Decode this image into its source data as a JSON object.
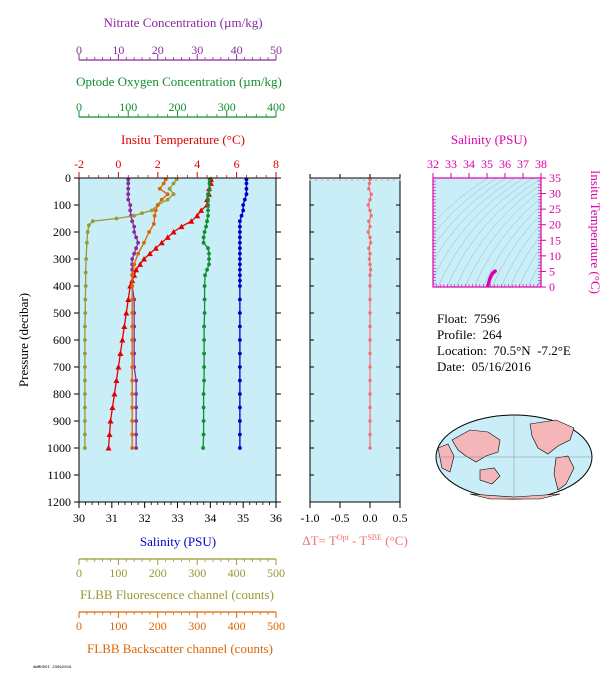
{
  "colors": {
    "nitrate": "#8b2b9b",
    "oxygen": "#0f8f2f",
    "temperature": "#e00000",
    "salinity": "#0000cc",
    "fluorescence": "#999933",
    "backscatter": "#dd6600",
    "delta_t": "#f07070",
    "plot_bg": "#c9eef8",
    "ts_pink": "#dd00aa"
  },
  "info": {
    "float_label": "Float:  7596",
    "profile_label": "Profile:  264",
    "location_label": "Location:  70.5°N  -7.2°E",
    "date_label": "Date:  05/16/2016"
  },
  "footer_stamp": "AWMHOOI 23062016",
  "map": {
    "type": "world-globe-inset"
  },
  "chart_data": [
    {
      "type": "line",
      "panel": "profile",
      "ylabel": "Pressure (decibar)",
      "ylim": [
        1200,
        0
      ],
      "yticks": [
        0,
        100,
        200,
        300,
        400,
        500,
        600,
        700,
        800,
        900,
        1000,
        1100,
        1200
      ],
      "axes": {
        "nitrate": {
          "label": "Nitrate Concentration (µm/kg)",
          "lim": [
            0,
            50
          ],
          "ticks": [
            0,
            10,
            20,
            30,
            40,
            50
          ]
        },
        "oxygen": {
          "label": "Optode Oxygen Concentration (µm/kg)",
          "lim": [
            0,
            400
          ],
          "ticks": [
            0,
            100,
            200,
            300,
            400
          ]
        },
        "temperature": {
          "label": "Insitu Temperature (°C)",
          "lim": [
            -2,
            8
          ],
          "ticks": [
            -2,
            0,
            2,
            4,
            6,
            8
          ]
        },
        "salinity": {
          "label": "Salinity (PSU)",
          "lim": [
            30,
            36
          ],
          "ticks": [
            30,
            31,
            32,
            33,
            34,
            35,
            36
          ]
        },
        "fluorescence": {
          "label": "FLBB Fluorescence channel (counts)",
          "lim": [
            0,
            500
          ],
          "ticks": [
            0,
            100,
            200,
            300,
            400,
            500
          ]
        },
        "backscatter": {
          "label": "FLBB Backscatter channel (counts)",
          "lim": [
            0,
            500
          ],
          "ticks": [
            0,
            100,
            200,
            300,
            400,
            500
          ]
        }
      },
      "series": [
        {
          "name": "Insitu Temperature",
          "axis": "temperature",
          "points": [
            [
              4.7,
              5
            ],
            [
              4.7,
              20
            ],
            [
              4.6,
              40
            ],
            [
              4.6,
              60
            ],
            [
              4.5,
              80
            ],
            [
              4.5,
              100
            ],
            [
              4.2,
              120
            ],
            [
              4.0,
              140
            ],
            [
              3.7,
              160
            ],
            [
              3.2,
              180
            ],
            [
              2.8,
              200
            ],
            [
              2.5,
              220
            ],
            [
              2.2,
              240
            ],
            [
              1.9,
              260
            ],
            [
              1.6,
              280
            ],
            [
              1.3,
              300
            ],
            [
              1.1,
              320
            ],
            [
              0.9,
              340
            ],
            [
              0.8,
              360
            ],
            [
              0.7,
              380
            ],
            [
              0.6,
              400
            ],
            [
              0.5,
              450
            ],
            [
              0.4,
              500
            ],
            [
              0.3,
              550
            ],
            [
              0.2,
              600
            ],
            [
              0.1,
              650
            ],
            [
              0.0,
              700
            ],
            [
              -0.1,
              750
            ],
            [
              -0.2,
              800
            ],
            [
              -0.3,
              850
            ],
            [
              -0.4,
              900
            ],
            [
              -0.45,
              950
            ],
            [
              -0.5,
              1000
            ]
          ]
        },
        {
          "name": "Salinity",
          "axis": "salinity",
          "points": [
            [
              35.1,
              5
            ],
            [
              35.1,
              20
            ],
            [
              35.1,
              40
            ],
            [
              35.1,
              60
            ],
            [
              35.05,
              80
            ],
            [
              35.0,
              100
            ],
            [
              35.0,
              120
            ],
            [
              34.95,
              140
            ],
            [
              34.9,
              160
            ],
            [
              34.9,
              180
            ],
            [
              34.9,
              200
            ],
            [
              34.9,
              220
            ],
            [
              34.9,
              240
            ],
            [
              34.9,
              260
            ],
            [
              34.9,
              280
            ],
            [
              34.9,
              300
            ],
            [
              34.9,
              320
            ],
            [
              34.9,
              340
            ],
            [
              34.9,
              360
            ],
            [
              34.9,
              380
            ],
            [
              34.9,
              400
            ],
            [
              34.9,
              450
            ],
            [
              34.9,
              500
            ],
            [
              34.9,
              550
            ],
            [
              34.9,
              600
            ],
            [
              34.9,
              650
            ],
            [
              34.9,
              700
            ],
            [
              34.9,
              750
            ],
            [
              34.9,
              800
            ],
            [
              34.9,
              850
            ],
            [
              34.9,
              900
            ],
            [
              34.9,
              950
            ],
            [
              34.9,
              1000
            ]
          ]
        },
        {
          "name": "Nitrate",
          "axis": "nitrate",
          "points": [
            [
              12.5,
              5
            ],
            [
              12.5,
              20
            ],
            [
              12.5,
              40
            ],
            [
              12.5,
              60
            ],
            [
              12.5,
              80
            ],
            [
              13,
              100
            ],
            [
              13,
              120
            ],
            [
              13.2,
              140
            ],
            [
              13.5,
              160
            ],
            [
              14,
              180
            ],
            [
              14,
              200
            ],
            [
              14.5,
              220
            ],
            [
              15,
              240
            ],
            [
              14.5,
              260
            ],
            [
              14,
              280
            ],
            [
              13.5,
              300
            ],
            [
              13.5,
              320
            ],
            [
              13.5,
              340
            ],
            [
              13.5,
              360
            ],
            [
              13.5,
              400
            ],
            [
              14,
              450
            ],
            [
              14,
              500
            ],
            [
              14,
              550
            ],
            [
              14,
              600
            ],
            [
              14,
              650
            ],
            [
              14,
              700
            ],
            [
              14.5,
              750
            ],
            [
              14.5,
              800
            ],
            [
              14.5,
              850
            ],
            [
              14.5,
              900
            ],
            [
              14.5,
              950
            ],
            [
              14.5,
              1000
            ]
          ]
        },
        {
          "name": "Optode Oxygen",
          "axis": "oxygen",
          "points": [
            [
              265,
              5
            ],
            [
              265,
              20
            ],
            [
              265,
              40
            ],
            [
              262,
              60
            ],
            [
              262,
              80
            ],
            [
              262,
              100
            ],
            [
              262,
              120
            ],
            [
              262,
              140
            ],
            [
              260,
              160
            ],
            [
              258,
              180
            ],
            [
              255,
              200
            ],
            [
              253,
              220
            ],
            [
              253,
              240
            ],
            [
              262,
              260
            ],
            [
              264,
              280
            ],
            [
              264,
              300
            ],
            [
              264,
              320
            ],
            [
              260,
              340
            ],
            [
              256,
              360
            ],
            [
              255,
              400
            ],
            [
              255,
              450
            ],
            [
              255,
              500
            ],
            [
              254,
              550
            ],
            [
              254,
              600
            ],
            [
              254,
              650
            ],
            [
              254,
              700
            ],
            [
              254,
              750
            ],
            [
              253,
              800
            ],
            [
              253,
              850
            ],
            [
              253,
              900
            ],
            [
              253,
              950
            ],
            [
              252,
              1000
            ]
          ]
        },
        {
          "name": "FLBB Fluorescence",
          "axis": "fluorescence",
          "points": [
            [
              248,
              5
            ],
            [
              240,
              20
            ],
            [
              230,
              40
            ],
            [
              240,
              60
            ],
            [
              225,
              80
            ],
            [
              200,
              100
            ],
            [
              185,
              120
            ],
            [
              160,
              130
            ],
            [
              140,
              140
            ],
            [
              95,
              150
            ],
            [
              35,
              160
            ],
            [
              25,
              175
            ],
            [
              22,
              200
            ],
            [
              20,
              240
            ],
            [
              18,
              300
            ],
            [
              17,
              350
            ],
            [
              17,
              400
            ],
            [
              16,
              450
            ],
            [
              16,
              500
            ],
            [
              15,
              550
            ],
            [
              15,
              600
            ],
            [
              15,
              650
            ],
            [
              15,
              700
            ],
            [
              15,
              750
            ],
            [
              15,
              800
            ],
            [
              15,
              850
            ],
            [
              15,
              900
            ],
            [
              15,
              950
            ],
            [
              15,
              1000
            ]
          ]
        },
        {
          "name": "FLBB Backscatter",
          "axis": "backscatter",
          "points": [
            [
              220,
              5
            ],
            [
              215,
              20
            ],
            [
              205,
              40
            ],
            [
              225,
              60
            ],
            [
              210,
              80
            ],
            [
              200,
              100
            ],
            [
              195,
              120
            ],
            [
              192,
              140
            ],
            [
              190,
              170
            ],
            [
              178,
              200
            ],
            [
              165,
              240
            ],
            [
              150,
              280
            ],
            [
              140,
              320
            ],
            [
              135,
              360
            ],
            [
              135,
              400
            ],
            [
              135,
              450
            ],
            [
              135,
              500
            ],
            [
              135,
              550
            ],
            [
              135,
              600
            ],
            [
              135,
              650
            ],
            [
              135,
              700
            ],
            [
              135,
              750
            ],
            [
              135,
              800
            ],
            [
              135,
              850
            ],
            [
              135,
              900
            ],
            [
              135,
              950
            ],
            [
              135,
              1000
            ]
          ]
        }
      ]
    },
    {
      "type": "line",
      "panel": "delta_t",
      "xlabel": "ΔT= T^Opt - T^SBE (°C)",
      "xlabel_main": "ΔT= T",
      "xlabel_sup1": "Opt",
      "xlabel_mid": " - T",
      "xlabel_sup2": "SBE",
      "xlabel_tail": " (°C)",
      "xlim": [
        -1.0,
        0.5
      ],
      "xticks": [
        "-1.0",
        "-0.5",
        "0.0",
        "0.5"
      ],
      "ylim": [
        1200,
        0
      ],
      "series": [
        {
          "name": "ΔT",
          "points": [
            [
              0.0,
              5
            ],
            [
              -0.01,
              20
            ],
            [
              -0.02,
              40
            ],
            [
              0.02,
              60
            ],
            [
              0.0,
              80
            ],
            [
              -0.03,
              100
            ],
            [
              0.0,
              120
            ],
            [
              0.02,
              140
            ],
            [
              -0.02,
              160
            ],
            [
              0.0,
              180
            ],
            [
              -0.03,
              200
            ],
            [
              0.0,
              220
            ],
            [
              0.01,
              240
            ],
            [
              -0.02,
              260
            ],
            [
              0.0,
              280
            ],
            [
              -0.01,
              300
            ],
            [
              0.0,
              320
            ],
            [
              0.01,
              340
            ],
            [
              0.0,
              360
            ],
            [
              0.0,
              400
            ],
            [
              0.0,
              450
            ],
            [
              0.0,
              500
            ],
            [
              0.0,
              550
            ],
            [
              0.0,
              600
            ],
            [
              0.0,
              650
            ],
            [
              0.0,
              700
            ],
            [
              0.0,
              750
            ],
            [
              0.0,
              800
            ],
            [
              0.0,
              850
            ],
            [
              0.0,
              900
            ],
            [
              0.0,
              950
            ],
            [
              0.0,
              1000
            ]
          ]
        }
      ]
    },
    {
      "type": "scatter",
      "panel": "ts_diagram",
      "title": "Salinity (PSU)",
      "ylabel": "Insitu Temperature (°C)",
      "xlim": [
        32,
        38
      ],
      "xticks": [
        32,
        33,
        34,
        35,
        36,
        37,
        38
      ],
      "ylim": [
        0,
        35
      ],
      "yticks": [
        0,
        5,
        10,
        15,
        20,
        25,
        30,
        35
      ],
      "series": [
        {
          "name": "T-S",
          "points": [
            [
              35.05,
              0.5
            ],
            [
              35.1,
              1.5
            ],
            [
              35.15,
              2.5
            ],
            [
              35.2,
              3.2
            ],
            [
              35.25,
              3.8
            ],
            [
              35.3,
              4.3
            ],
            [
              35.35,
              4.6
            ],
            [
              35.4,
              4.9
            ],
            [
              35.45,
              5.1
            ]
          ]
        }
      ]
    }
  ]
}
